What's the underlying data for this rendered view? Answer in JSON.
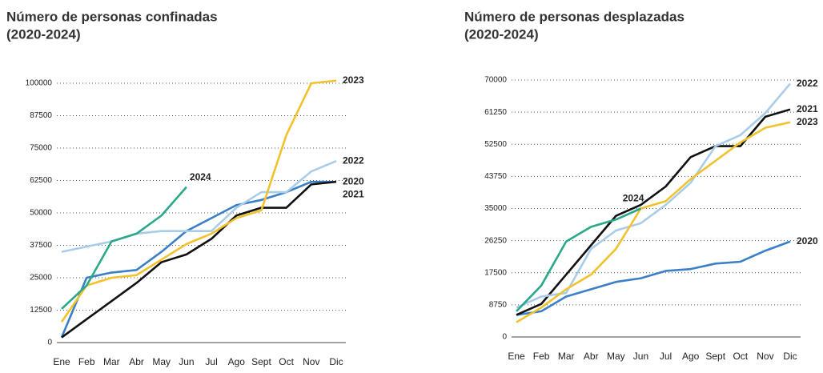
{
  "chart_data": [
    {
      "type": "line",
      "title": "Número de personas confinadas",
      "subtitle": "(2020-2024)",
      "categories": [
        "Ene",
        "Feb",
        "Mar",
        "Abr",
        "May",
        "Jun",
        "Jul",
        "Ago",
        "Sept",
        "Oct",
        "Nov",
        "Dic"
      ],
      "ylim": [
        0,
        100000
      ],
      "yticks": [
        0,
        12500,
        25000,
        37500,
        50000,
        62500,
        75000,
        87500,
        100000
      ],
      "grid": true,
      "series": [
        {
          "name": "2020",
          "color": "#3b80c6",
          "values": [
            2000,
            25000,
            27000,
            28000,
            35000,
            43000,
            48000,
            53000,
            55000,
            58000,
            62000,
            62000
          ]
        },
        {
          "name": "2021",
          "color": "#111111",
          "values": [
            2000,
            9000,
            16000,
            23000,
            31000,
            34000,
            40000,
            49000,
            52000,
            52000,
            61000,
            62000
          ]
        },
        {
          "name": "2022",
          "color": "#a9cce8",
          "values": [
            35000,
            37000,
            39000,
            42000,
            43000,
            43000,
            43000,
            52000,
            58000,
            58000,
            66000,
            70000
          ]
        },
        {
          "name": "2023",
          "color": "#f2c22e",
          "values": [
            8000,
            22000,
            25000,
            26000,
            32000,
            38000,
            42000,
            48000,
            51000,
            80000,
            100000,
            101000
          ]
        },
        {
          "name": "2024",
          "color": "#2aa88a",
          "values": [
            13000,
            22000,
            39000,
            42000,
            49000,
            60000,
            null,
            null,
            null,
            null,
            null,
            null
          ]
        }
      ]
    },
    {
      "type": "line",
      "title": "Número de personas desplazadas",
      "subtitle": "(2020-2024)",
      "categories": [
        "Ene",
        "Feb",
        "Mar",
        "Abr",
        "May",
        "Jun",
        "Jul",
        "Ago",
        "Sept",
        "Oct",
        "Nov",
        "Dic"
      ],
      "ylim": [
        0,
        70000
      ],
      "yticks": [
        0,
        8750,
        17500,
        26250,
        35000,
        43750,
        52500,
        61250,
        70000
      ],
      "grid": true,
      "series": [
        {
          "name": "2020",
          "color": "#3b80c6",
          "values": [
            6000,
            7000,
            11000,
            13000,
            15000,
            16000,
            18000,
            18500,
            20000,
            20500,
            23500,
            26000
          ]
        },
        {
          "name": "2021",
          "color": "#111111",
          "values": [
            6000,
            9000,
            17000,
            25000,
            33000,
            36000,
            41000,
            49000,
            52000,
            52000,
            60000,
            62000
          ]
        },
        {
          "name": "2022",
          "color": "#a9cce8",
          "values": [
            8000,
            11000,
            12000,
            24000,
            29000,
            31000,
            36000,
            42000,
            52000,
            55000,
            61000,
            69000
          ]
        },
        {
          "name": "2023",
          "color": "#f2c22e",
          "values": [
            4000,
            8000,
            13000,
            17000,
            24000,
            35000,
            37000,
            43000,
            48000,
            53000,
            57000,
            58500
          ]
        },
        {
          "name": "2024",
          "color": "#2aa88a",
          "values": [
            7000,
            14000,
            26000,
            30000,
            32000,
            35000,
            null,
            null,
            null,
            null,
            null,
            null
          ]
        }
      ]
    }
  ]
}
